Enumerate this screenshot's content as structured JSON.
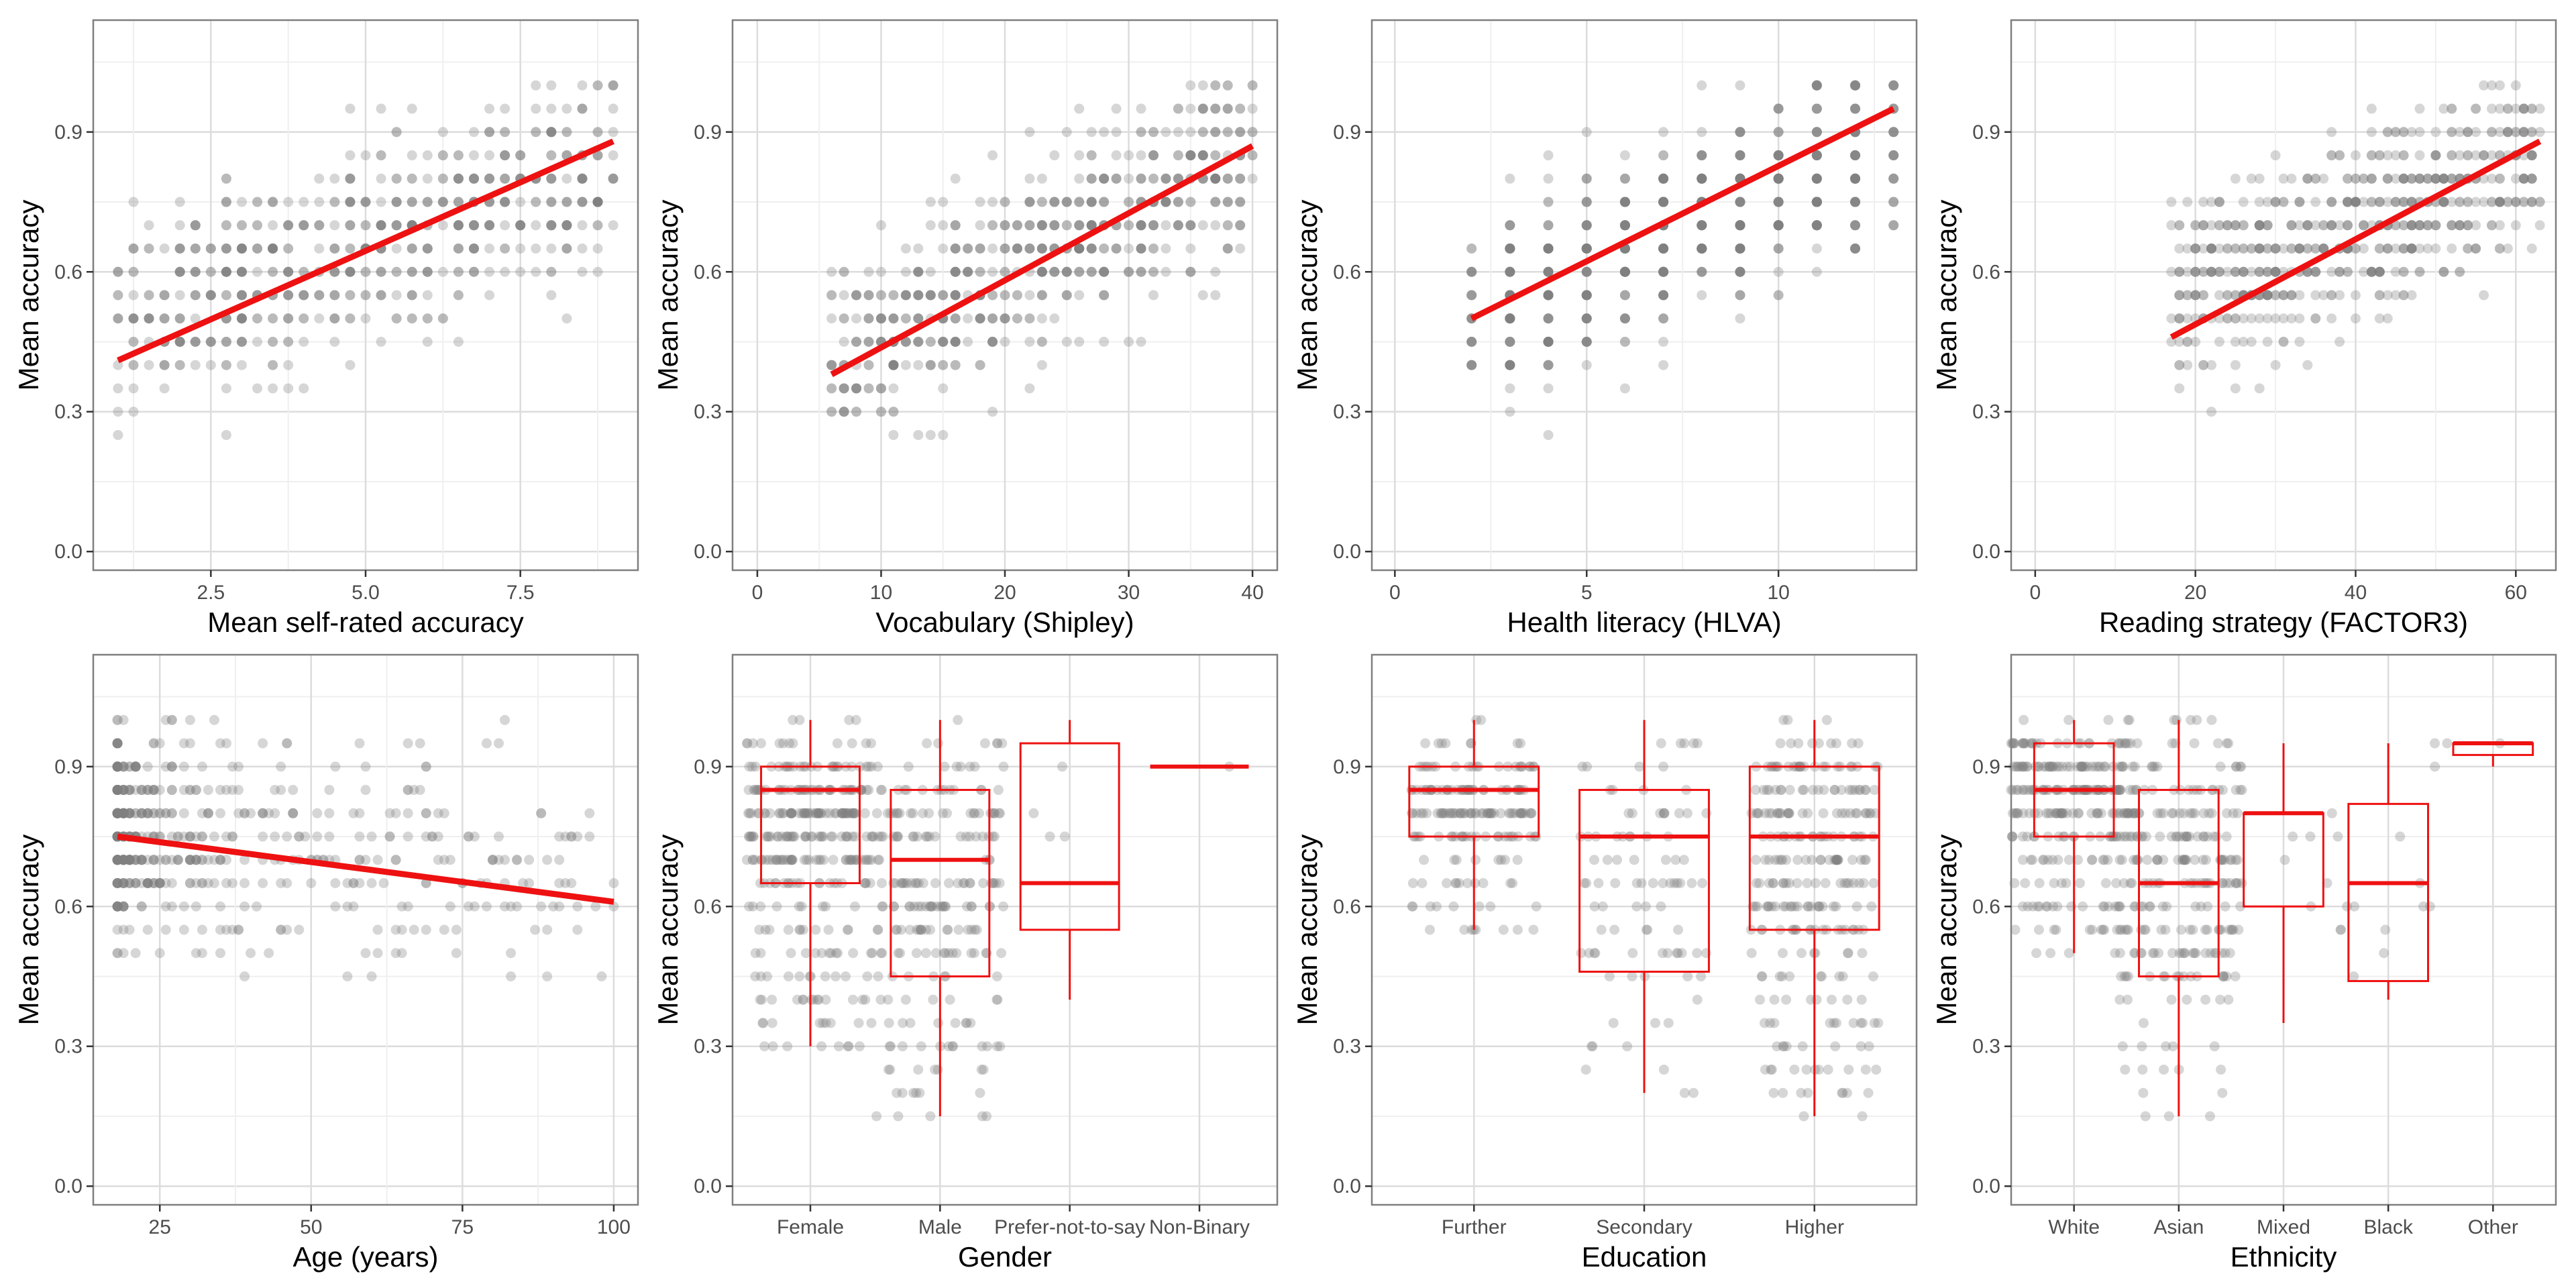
{
  "figure": {
    "colors": {
      "fit": "#ee1111",
      "box": "#ee1111",
      "points": "#808080",
      "grid_major": "#dcdcdc",
      "grid_minor": "#efefef",
      "panel_border": "#7f7f7f"
    }
  },
  "chart_data": [
    {
      "type": "scatter",
      "xlabel": "Mean self-rated accuracy",
      "ylabel": "Mean accuracy",
      "xlim": [
        0.6,
        9.4
      ],
      "ylim": [
        -0.04,
        1.14
      ],
      "xticks": [
        2.5,
        5.0,
        7.5
      ],
      "xtick_labels": [
        "2.5",
        "5.0",
        "7.5"
      ],
      "yticks": [
        0,
        0.3,
        0.6,
        0.9
      ],
      "ytick_labels": [
        "0.0",
        "0.3",
        "0.6",
        "0.9"
      ],
      "grid": true,
      "fit_line": {
        "x": [
          1,
          9
        ],
        "y": [
          0.41,
          0.88
        ]
      },
      "point_cloud": {
        "x_range": [
          1,
          9
        ],
        "x_step": 0.25,
        "y_step": 0.05,
        "y_center_at_min": 0.48,
        "y_center_at_max": 0.84,
        "spread": 0.22,
        "count": 650
      }
    },
    {
      "type": "scatter",
      "xlabel": "Vocabulary (Shipley)",
      "ylabel": "Mean accuracy",
      "xlim": [
        -2,
        42
      ],
      "ylim": [
        -0.04,
        1.14
      ],
      "xticks": [
        0,
        10,
        20,
        30,
        40
      ],
      "xtick_labels": [
        "0",
        "10",
        "20",
        "30",
        "40"
      ],
      "yticks": [
        0,
        0.3,
        0.6,
        0.9
      ],
      "ytick_labels": [
        "0.0",
        "0.3",
        "0.6",
        "0.9"
      ],
      "grid": true,
      "fit_line": {
        "x": [
          6,
          40
        ],
        "y": [
          0.38,
          0.87
        ]
      },
      "point_cloud": {
        "x_range": [
          6,
          40
        ],
        "x_step": 1,
        "y_step": 0.05,
        "y_center_at_min": 0.42,
        "y_center_at_max": 0.85,
        "spread": 0.2,
        "count": 650
      }
    },
    {
      "type": "scatter",
      "xlabel": "Health literacy (HLVA)",
      "ylabel": "Mean accuracy",
      "xlim": [
        -0.6,
        13.6
      ],
      "ylim": [
        -0.04,
        1.14
      ],
      "xticks": [
        0,
        5,
        10
      ],
      "xtick_labels": [
        "0",
        "5",
        "10"
      ],
      "yticks": [
        0,
        0.3,
        0.6,
        0.9
      ],
      "ytick_labels": [
        "0.0",
        "0.3",
        "0.6",
        "0.9"
      ],
      "grid": true,
      "fit_line": {
        "x": [
          2,
          13
        ],
        "y": [
          0.5,
          0.95
        ]
      },
      "point_cloud": {
        "x_range": [
          2,
          13
        ],
        "x_step": 1,
        "y_step": 0.05,
        "y_center_at_min": 0.5,
        "y_center_at_max": 0.88,
        "spread": 0.2,
        "count": 650
      }
    },
    {
      "type": "scatter",
      "xlabel": "Reading strategy (FACTOR3)",
      "ylabel": "Mean accuracy",
      "xlim": [
        -3,
        65
      ],
      "ylim": [
        -0.04,
        1.14
      ],
      "xticks": [
        0,
        20,
        40,
        60
      ],
      "xtick_labels": [
        "0",
        "20",
        "40",
        "60"
      ],
      "yticks": [
        0,
        0.3,
        0.6,
        0.9
      ],
      "ytick_labels": [
        "0.0",
        "0.3",
        "0.6",
        "0.9"
      ],
      "grid": true,
      "fit_line": {
        "x": [
          17,
          63
        ],
        "y": [
          0.46,
          0.88
        ]
      },
      "point_cloud": {
        "x_range": [
          17,
          63
        ],
        "x_step": 1,
        "y_step": 0.05,
        "y_center_at_min": 0.55,
        "y_center_at_max": 0.85,
        "spread": 0.18,
        "count": 650
      }
    },
    {
      "type": "scatter",
      "xlabel": "Age (years)",
      "ylabel": "Mean accuracy",
      "xlim": [
        14,
        104
      ],
      "ylim": [
        -0.04,
        1.14
      ],
      "xticks": [
        25,
        50,
        75,
        100
      ],
      "xtick_labels": [
        "25",
        "50",
        "75",
        "100"
      ],
      "yticks": [
        0,
        0.3,
        0.6,
        0.9
      ],
      "ytick_labels": [
        "0.0",
        "0.3",
        "0.6",
        "0.9"
      ],
      "grid": true,
      "fit_line": {
        "x": [
          18,
          100
        ],
        "y": [
          0.75,
          0.61
        ]
      },
      "point_cloud": {
        "x_range": [
          18,
          100
        ],
        "x_step": 1,
        "y_step": 0.05,
        "y_center_at_min": 0.76,
        "y_center_at_max": 0.66,
        "spread": 0.22,
        "count": 560,
        "x_skew": 3
      }
    },
    {
      "type": "box",
      "xlabel": "Gender",
      "ylabel": "Mean accuracy",
      "categories": [
        "Female",
        "Male",
        "Prefer-not-to-say",
        "Non-Binary"
      ],
      "ylim": [
        -0.04,
        1.14
      ],
      "yticks": [
        0,
        0.3,
        0.6,
        0.9
      ],
      "ytick_labels": [
        "0.0",
        "0.3",
        "0.6",
        "0.9"
      ],
      "grid": true,
      "boxes": [
        {
          "min": 0.3,
          "q1": 0.65,
          "median": 0.85,
          "q3": 0.9,
          "max": 1.0,
          "n_points": 320
        },
        {
          "min": 0.15,
          "q1": 0.45,
          "median": 0.7,
          "q3": 0.85,
          "max": 1.0,
          "n_points": 220
        },
        {
          "min": 0.4,
          "q1": 0.55,
          "median": 0.65,
          "q3": 0.95,
          "max": 1.0,
          "n_points": 4
        },
        {
          "min": 0.9,
          "q1": 0.9,
          "median": 0.9,
          "q3": 0.9,
          "max": 0.9,
          "n_points": 1
        }
      ]
    },
    {
      "type": "box",
      "xlabel": "Education",
      "ylabel": "Mean accuracy",
      "categories": [
        "Further",
        "Secondary",
        "Higher"
      ],
      "ylim": [
        -0.04,
        1.14
      ],
      "yticks": [
        0,
        0.3,
        0.6,
        0.9
      ],
      "ytick_labels": [
        "0.0",
        "0.3",
        "0.6",
        "0.9"
      ],
      "grid": true,
      "boxes": [
        {
          "min": 0.55,
          "q1": 0.75,
          "median": 0.85,
          "q3": 0.9,
          "max": 1.0,
          "n_points": 180
        },
        {
          "min": 0.2,
          "q1": 0.46,
          "median": 0.75,
          "q3": 0.85,
          "max": 1.0,
          "n_points": 90
        },
        {
          "min": 0.15,
          "q1": 0.55,
          "median": 0.75,
          "q3": 0.9,
          "max": 1.0,
          "n_points": 270
        }
      ]
    },
    {
      "type": "box",
      "xlabel": "Ethnicity",
      "ylabel": "Mean accuracy",
      "categories": [
        "White",
        "Asian",
        "Mixed",
        "Black",
        "Other"
      ],
      "ylim": [
        -0.04,
        1.14
      ],
      "yticks": [
        0,
        0.3,
        0.6,
        0.9
      ],
      "ytick_labels": [
        "0.0",
        "0.3",
        "0.6",
        "0.9"
      ],
      "grid": true,
      "boxes": [
        {
          "min": 0.5,
          "q1": 0.75,
          "median": 0.85,
          "q3": 0.95,
          "max": 1.0,
          "n_points": 260
        },
        {
          "min": 0.15,
          "q1": 0.45,
          "median": 0.65,
          "q3": 0.85,
          "max": 1.0,
          "n_points": 230
        },
        {
          "min": 0.35,
          "q1": 0.6,
          "median": 0.8,
          "q3": 0.8,
          "max": 0.95,
          "n_points": 14
        },
        {
          "min": 0.4,
          "q1": 0.44,
          "median": 0.65,
          "q3": 0.82,
          "max": 0.95,
          "n_points": 10
        },
        {
          "min": 0.9,
          "q1": 0.925,
          "median": 0.95,
          "q3": 0.95,
          "max": 0.95,
          "n_points": 4
        }
      ]
    }
  ]
}
